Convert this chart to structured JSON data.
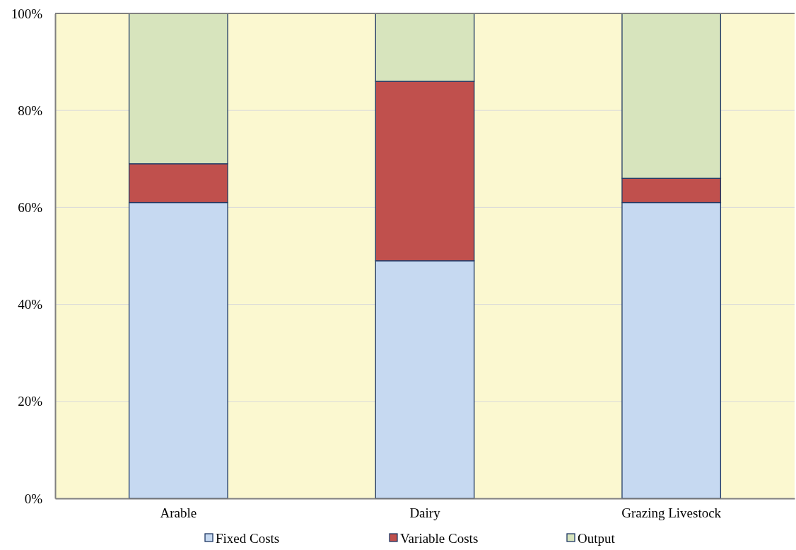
{
  "chart_data": {
    "type": "bar",
    "stacked": true,
    "categories": [
      "Arable",
      "Dairy",
      "Grazing Livestock"
    ],
    "series": [
      {
        "name": "Fixed Costs",
        "color": "#c6d9f1",
        "values": [
          61,
          49,
          61
        ]
      },
      {
        "name": "Variable Costs",
        "color": "#c0504d",
        "values": [
          8,
          37,
          5
        ]
      },
      {
        "name": "Output",
        "color": "#d7e4bd",
        "values": [
          31,
          14,
          34
        ]
      }
    ],
    "ylim": [
      0,
      100
    ],
    "yticks": [
      {
        "value": 0,
        "label": "0%"
      },
      {
        "value": 20,
        "label": "20%"
      },
      {
        "value": 40,
        "label": "40%"
      },
      {
        "value": 60,
        "label": "60%"
      },
      {
        "value": 80,
        "label": "80%"
      },
      {
        "value": 100,
        "label": "100%"
      }
    ],
    "grid": "y",
    "legend": "bottom"
  }
}
